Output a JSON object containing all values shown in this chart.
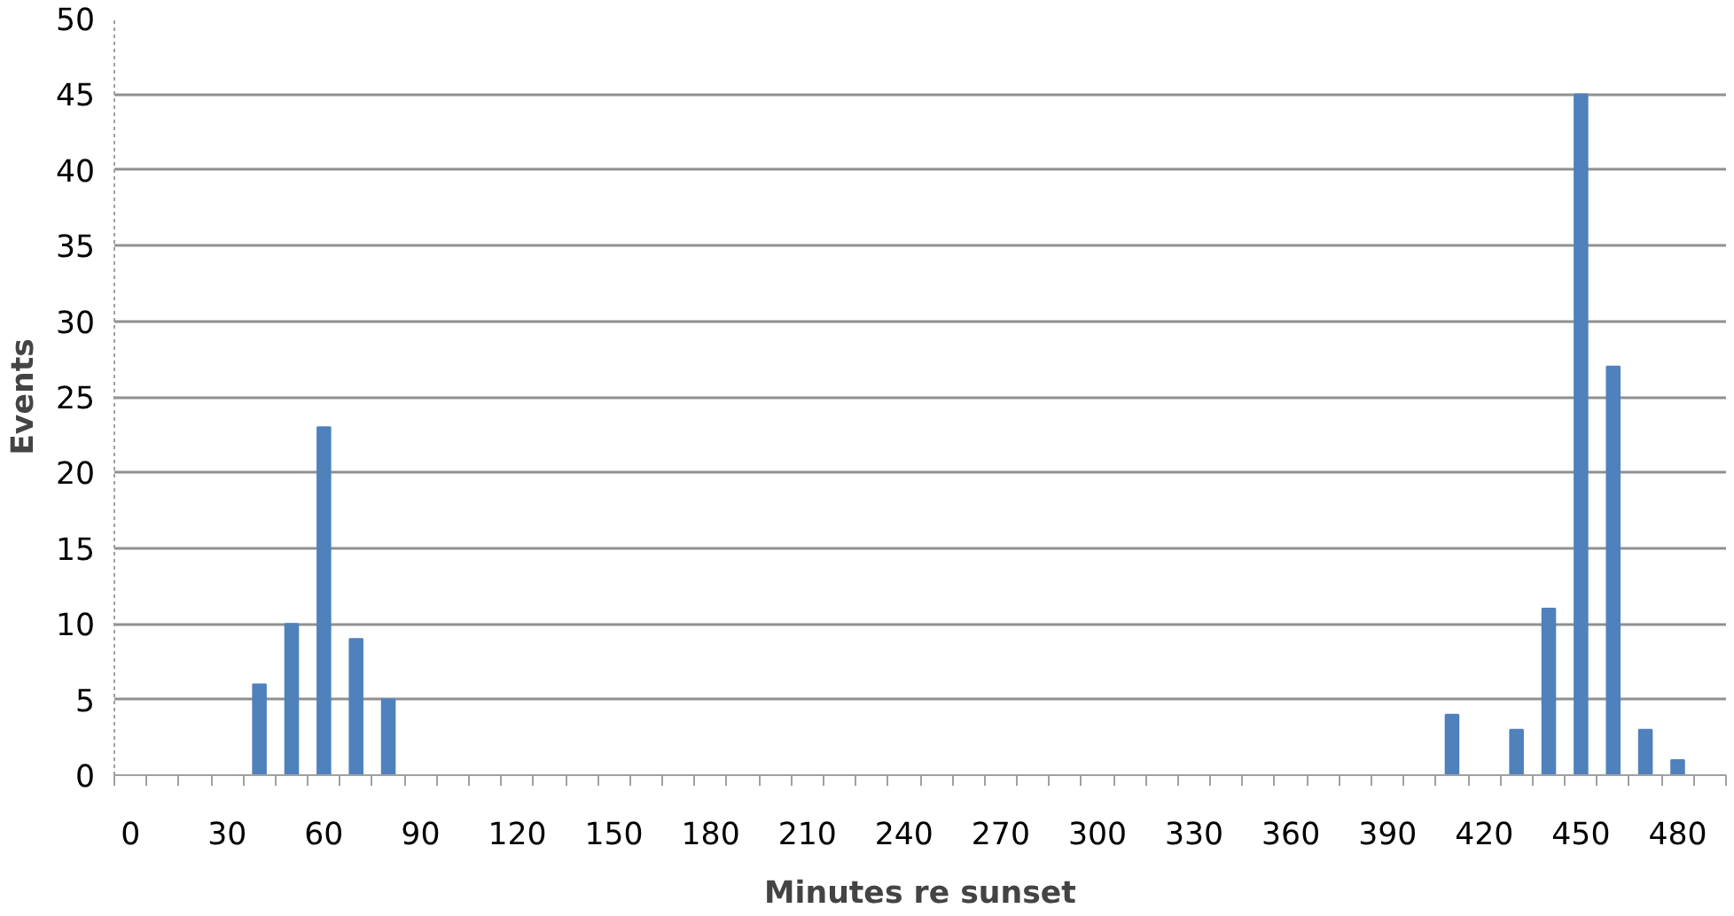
{
  "chart_data": {
    "type": "bar",
    "xlabel": "Minutes re sunset",
    "ylabel": "Events",
    "categories": [
      "0",
      null,
      null,
      "30",
      null,
      null,
      "60",
      null,
      null,
      "90",
      null,
      null,
      "120",
      null,
      null,
      "150",
      null,
      null,
      "180",
      null,
      null,
      "210",
      null,
      null,
      "240",
      null,
      null,
      "270",
      null,
      null,
      "300",
      null,
      null,
      "330",
      null,
      null,
      "360",
      null,
      null,
      "390",
      null,
      null,
      "420",
      null,
      null,
      "450",
      null,
      null,
      "480",
      null
    ],
    "values": [
      0,
      0,
      0,
      0,
      6,
      10,
      23,
      9,
      5,
      0,
      0,
      0,
      0,
      0,
      0,
      0,
      0,
      0,
      0,
      0,
      0,
      0,
      0,
      0,
      0,
      0,
      0,
      0,
      0,
      0,
      0,
      0,
      0,
      0,
      0,
      0,
      0,
      0,
      0,
      0,
      0,
      4,
      0,
      3,
      11,
      45,
      27,
      3,
      1,
      0
    ],
    "color": "#4f81bd",
    "ylim": [
      0,
      50
    ],
    "yticks": [
      0,
      5,
      10,
      15,
      20,
      25,
      30,
      35,
      40,
      45,
      50
    ],
    "grid": "y"
  }
}
